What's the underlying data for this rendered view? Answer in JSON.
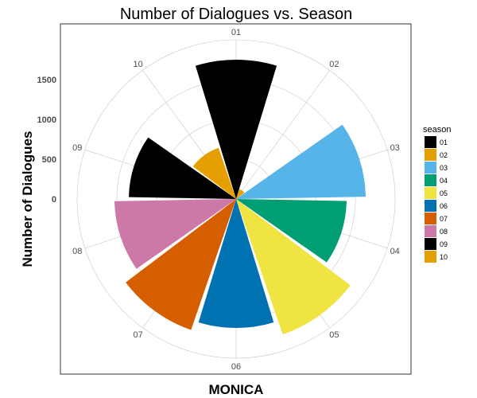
{
  "chart_data": {
    "type": "polar-bar",
    "title": "Number of Dialogues vs. Season",
    "xlabel": "MONICA",
    "ylabel": "Number of Dialogues",
    "radial_range": [
      0,
      2000
    ],
    "radial_ticks": [
      "0",
      "500",
      "1000",
      "1500"
    ],
    "radial_tick_values": [
      0,
      500,
      1000,
      1500
    ],
    "legend_title": "season",
    "legend_position": "right",
    "categories": [
      "01",
      "02",
      "03",
      "04",
      "05",
      "06",
      "07",
      "08",
      "09",
      "10"
    ],
    "values": [
      1750,
      130,
      1630,
      1390,
      1800,
      1620,
      1740,
      1530,
      1350,
      680
    ],
    "colors": [
      "#000000",
      "#E69F00",
      "#56B4E9",
      "#009E73",
      "#F0E442",
      "#0072B2",
      "#D55E00",
      "#CC79A7",
      "#000000",
      "#E69F00"
    ]
  }
}
